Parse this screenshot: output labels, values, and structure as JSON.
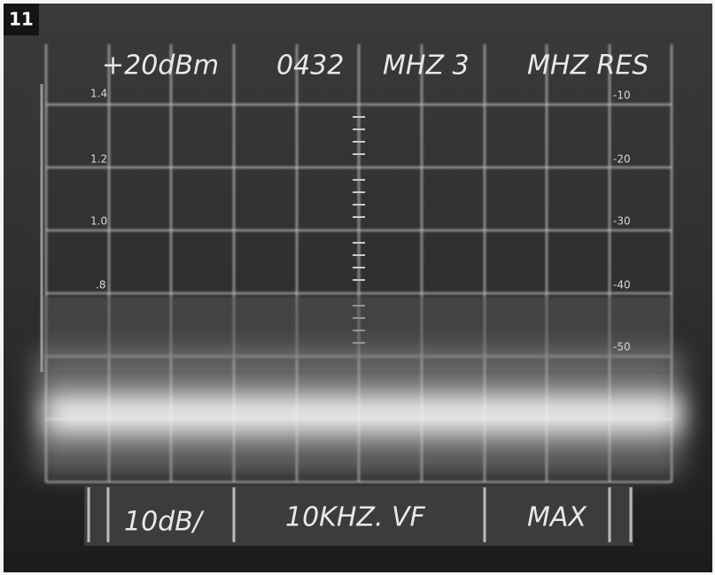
{
  "figure_label": "11",
  "top_readout": [
    "+20dBm",
    "0432",
    "MHZ 3",
    "MHZ RES"
  ],
  "left_scale": [
    "1.4",
    "1.2",
    "1.0",
    ".8"
  ],
  "right_scale": [
    "-10",
    "-20",
    "-30",
    "-40",
    "-50"
  ],
  "bottom_readout": [
    "10dB/",
    "10KHZ. VF",
    "MAX"
  ]
}
